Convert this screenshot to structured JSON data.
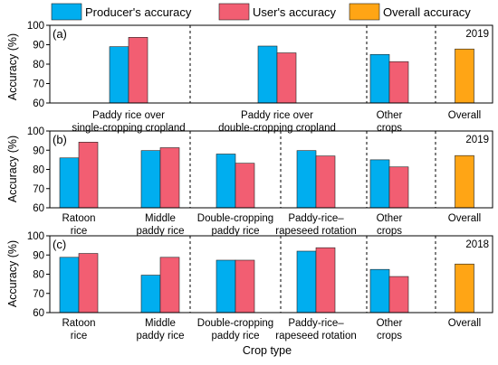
{
  "legend": [
    {
      "label": "Producer's accuracy",
      "color": "#00AEEF"
    },
    {
      "label": "User's accuracy",
      "color": "#F25E72"
    },
    {
      "label": "Overall accuracy",
      "color": "#FFA515"
    }
  ],
  "x_axis_title": "Crop type",
  "y_axis_title": "Accuracy (%)",
  "chart_data": [
    {
      "type": "bar",
      "panel": "(a)",
      "year": "2019",
      "ylim": [
        60,
        100
      ],
      "yticks": [
        "60",
        "70",
        "80",
        "90",
        "100"
      ],
      "categories": [
        {
          "lines": [
            "Paddy rice over",
            "single-cropping cropland"
          ]
        },
        {
          "lines": [
            "Paddy rice over",
            "double-cropping cropland"
          ]
        },
        {
          "lines": [
            "Other",
            "crops"
          ]
        },
        {
          "lines": [
            "Overall"
          ]
        }
      ],
      "series": [
        {
          "name": "Producer's accuracy",
          "values": [
            89.0,
            89.3,
            85.0,
            null
          ]
        },
        {
          "name": "User's accuracy",
          "values": [
            93.8,
            85.8,
            81.3,
            null
          ]
        },
        {
          "name": "Overall accuracy",
          "values": [
            null,
            null,
            null,
            87.8
          ]
        }
      ]
    },
    {
      "type": "bar",
      "panel": "(b)",
      "year": "2019",
      "ylim": [
        60,
        100
      ],
      "yticks": [
        "60",
        "70",
        "80",
        "90",
        "100"
      ],
      "categories": [
        {
          "lines": [
            "Ratoon",
            "rice"
          ]
        },
        {
          "lines": [
            "Middle",
            "paddy rice"
          ]
        },
        {
          "lines": [
            "Double-cropping",
            "paddy rice"
          ]
        },
        {
          "lines": [
            "Paddy-rice–",
            "rapeseed rotation"
          ]
        },
        {
          "lines": [
            "Other",
            "crops"
          ]
        },
        {
          "lines": [
            "Overall"
          ]
        }
      ],
      "series": [
        {
          "name": "Producer's accuracy",
          "values": [
            86.0,
            89.8,
            88.0,
            89.8,
            85.0,
            null
          ]
        },
        {
          "name": "User's accuracy",
          "values": [
            94.2,
            91.3,
            83.2,
            87.0,
            81.3,
            null
          ]
        },
        {
          "name": "Overall accuracy",
          "values": [
            null,
            null,
            null,
            null,
            null,
            87.2
          ]
        }
      ]
    },
    {
      "type": "bar",
      "panel": "(c)",
      "year": "2018",
      "ylim": [
        60,
        100
      ],
      "yticks": [
        "60",
        "70",
        "80",
        "90",
        "100"
      ],
      "categories": [
        {
          "lines": [
            "Ratoon",
            "rice"
          ]
        },
        {
          "lines": [
            "Middle",
            "paddy rice"
          ]
        },
        {
          "lines": [
            "Double-cropping",
            "paddy rice"
          ]
        },
        {
          "lines": [
            "Paddy-rice–",
            "rapeseed rotation"
          ]
        },
        {
          "lines": [
            "Other",
            "crops"
          ]
        },
        {
          "lines": [
            "Overall"
          ]
        }
      ],
      "series": [
        {
          "name": "Producer's accuracy",
          "values": [
            88.8,
            79.5,
            87.3,
            92.0,
            82.5,
            null
          ]
        },
        {
          "name": "User's accuracy",
          "values": [
            90.8,
            88.8,
            87.3,
            93.8,
            78.8,
            null
          ]
        },
        {
          "name": "Overall accuracy",
          "values": [
            null,
            null,
            null,
            null,
            null,
            85.3
          ]
        }
      ]
    }
  ]
}
